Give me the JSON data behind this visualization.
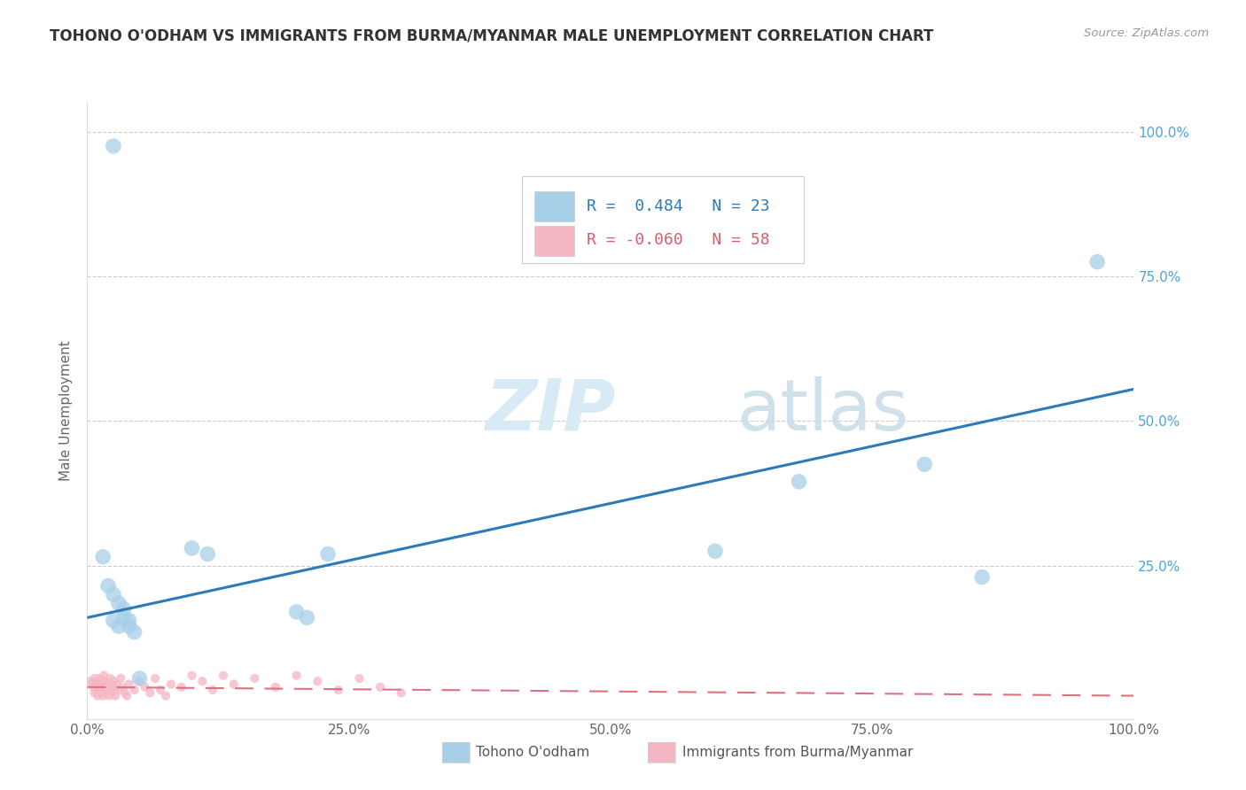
{
  "title": "TOHONO O'ODHAM VS IMMIGRANTS FROM BURMA/MYANMAR MALE UNEMPLOYMENT CORRELATION CHART",
  "source": "Source: ZipAtlas.com",
  "ylabel": "Male Unemployment",
  "xlim": [
    0.0,
    1.0
  ],
  "ylim": [
    0.0,
    1.05
  ],
  "xtick_labels": [
    "0.0%",
    "25.0%",
    "50.0%",
    "75.0%",
    "100.0%"
  ],
  "xtick_vals": [
    0.0,
    0.25,
    0.5,
    0.75,
    1.0
  ],
  "ytick_labels": [
    "25.0%",
    "50.0%",
    "75.0%",
    "100.0%"
  ],
  "ytick_vals": [
    0.25,
    0.5,
    0.75,
    1.0
  ],
  "legend_label1": "Tohono O'odham",
  "legend_label2": "Immigrants from Burma/Myanmar",
  "R1": 0.484,
  "N1": 23,
  "R2": -0.06,
  "N2": 58,
  "blue_color": "#a8cfe8",
  "pink_color": "#f4b8c4",
  "blue_line_color": "#2b7bba",
  "pink_line_color": "#e07080",
  "watermark_zip": "ZIP",
  "watermark_atlas": "atlas",
  "blue_line_x0": 0.0,
  "blue_line_y0": 0.16,
  "blue_line_x1": 1.0,
  "blue_line_y1": 0.555,
  "pink_line_x0": 0.0,
  "pink_line_y0": 0.04,
  "pink_line_x1": 1.0,
  "pink_line_y1": 0.025,
  "blue_dots": [
    [
      0.025,
      0.975
    ],
    [
      0.015,
      0.265
    ],
    [
      0.02,
      0.215
    ],
    [
      0.025,
      0.2
    ],
    [
      0.03,
      0.185
    ],
    [
      0.035,
      0.175
    ],
    [
      0.035,
      0.16
    ],
    [
      0.04,
      0.155
    ],
    [
      0.04,
      0.145
    ],
    [
      0.045,
      0.135
    ],
    [
      0.025,
      0.155
    ],
    [
      0.03,
      0.145
    ],
    [
      0.05,
      0.055
    ],
    [
      0.1,
      0.28
    ],
    [
      0.115,
      0.27
    ],
    [
      0.2,
      0.17
    ],
    [
      0.21,
      0.16
    ],
    [
      0.23,
      0.27
    ],
    [
      0.6,
      0.275
    ],
    [
      0.68,
      0.395
    ],
    [
      0.8,
      0.425
    ],
    [
      0.855,
      0.23
    ],
    [
      0.965,
      0.775
    ]
  ],
  "pink_dots": [
    [
      0.003,
      0.05
    ],
    [
      0.005,
      0.045
    ],
    [
      0.006,
      0.04
    ],
    [
      0.007,
      0.055
    ],
    [
      0.007,
      0.03
    ],
    [
      0.008,
      0.048
    ],
    [
      0.009,
      0.035
    ],
    [
      0.01,
      0.05
    ],
    [
      0.01,
      0.025
    ],
    [
      0.011,
      0.04
    ],
    [
      0.012,
      0.055
    ],
    [
      0.012,
      0.03
    ],
    [
      0.013,
      0.045
    ],
    [
      0.014,
      0.035
    ],
    [
      0.015,
      0.05
    ],
    [
      0.015,
      0.025
    ],
    [
      0.016,
      0.06
    ],
    [
      0.016,
      0.04
    ],
    [
      0.017,
      0.03
    ],
    [
      0.018,
      0.05
    ],
    [
      0.019,
      0.035
    ],
    [
      0.02,
      0.045
    ],
    [
      0.021,
      0.025
    ],
    [
      0.022,
      0.055
    ],
    [
      0.023,
      0.04
    ],
    [
      0.024,
      0.03
    ],
    [
      0.025,
      0.05
    ],
    [
      0.026,
      0.035
    ],
    [
      0.027,
      0.025
    ],
    [
      0.028,
      0.045
    ],
    [
      0.03,
      0.035
    ],
    [
      0.032,
      0.055
    ],
    [
      0.034,
      0.04
    ],
    [
      0.036,
      0.03
    ],
    [
      0.038,
      0.025
    ],
    [
      0.04,
      0.045
    ],
    [
      0.045,
      0.035
    ],
    [
      0.05,
      0.05
    ],
    [
      0.055,
      0.04
    ],
    [
      0.06,
      0.03
    ],
    [
      0.065,
      0.055
    ],
    [
      0.07,
      0.035
    ],
    [
      0.075,
      0.025
    ],
    [
      0.08,
      0.045
    ],
    [
      0.09,
      0.04
    ],
    [
      0.1,
      0.06
    ],
    [
      0.11,
      0.05
    ],
    [
      0.12,
      0.035
    ],
    [
      0.13,
      0.06
    ],
    [
      0.14,
      0.045
    ],
    [
      0.16,
      0.055
    ],
    [
      0.18,
      0.04
    ],
    [
      0.2,
      0.06
    ],
    [
      0.22,
      0.05
    ],
    [
      0.24,
      0.035
    ],
    [
      0.26,
      0.055
    ],
    [
      0.28,
      0.04
    ],
    [
      0.3,
      0.03
    ]
  ]
}
